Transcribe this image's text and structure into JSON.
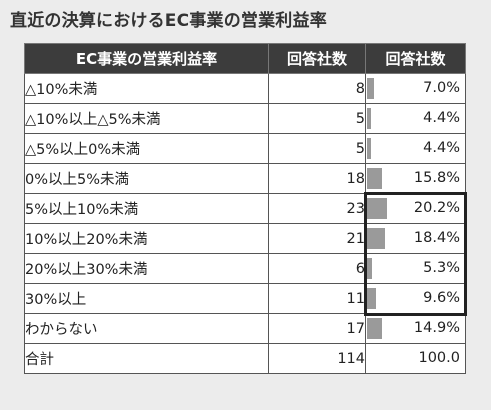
{
  "title": "直近の決算におけるEC事業の営業利益率",
  "headers": [
    "EC事業の営業利益率",
    "回答社数",
    "回答社数"
  ],
  "rows": [
    {
      "label": "△10%未満",
      "count": "8",
      "pct": "7.0%"
    },
    {
      "label": "△10%以上△5%未満",
      "count": "5",
      "pct": "4.4%"
    },
    {
      "label": "△5%以上0%未満",
      "count": "5",
      "pct": "4.4%"
    },
    {
      "label": "0%以上5%未満",
      "count": "18",
      "pct": "15.8%"
    },
    {
      "label": "5%以上10%未満",
      "count": "23",
      "pct": "20.2%"
    },
    {
      "label": "10%以上20%未満",
      "count": "21",
      "pct": "18.4%"
    },
    {
      "label": "20%以上30%未満",
      "count": "6",
      "pct": "5.3%"
    },
    {
      "label": "30%以上",
      "count": "11",
      "pct": "9.6%"
    },
    {
      "label": "わからない",
      "count": "17",
      "pct": "14.9%"
    }
  ],
  "total": {
    "label": "合計",
    "count": "114",
    "pct": "100.0"
  },
  "colors": {
    "header_bg": "#3c3c3c",
    "bar": "#9a9a9a",
    "highlight": "#222222"
  },
  "chart_data": {
    "type": "table",
    "title": "直近の決算におけるEC事業の営業利益率",
    "columns": [
      "EC事業の営業利益率",
      "回答社数",
      "回答社数"
    ],
    "categories": [
      "△10%未満",
      "△10%以上△5%未満",
      "△5%以上0%未満",
      "0%以上5%未満",
      "5%以上10%未満",
      "10%以上20%未満",
      "20%以上30%未満",
      "30%以上",
      "わからない",
      "合計"
    ],
    "counts": [
      8,
      5,
      5,
      18,
      23,
      21,
      6,
      11,
      17,
      114
    ],
    "percentages": [
      7.0,
      4.4,
      4.4,
      15.8,
      20.2,
      18.4,
      5.3,
      9.6,
      14.9,
      100.0
    ],
    "bar_max": 100,
    "highlighted_categories": [
      "5%以上10%未満",
      "10%以上20%未満",
      "20%以上30%未満",
      "30%以上"
    ]
  }
}
